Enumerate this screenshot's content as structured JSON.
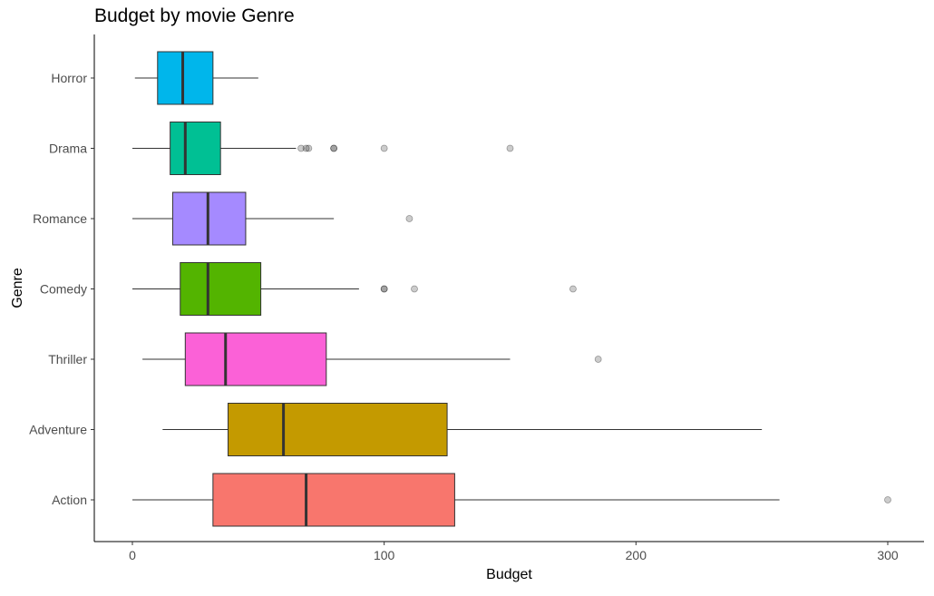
{
  "chart_data": {
    "type": "boxplot",
    "orientation": "horizontal",
    "title": "Budget by movie Genre",
    "xlabel": "Budget",
    "ylabel": "Genre",
    "xlim": [
      -15,
      315
    ],
    "x_ticks": [
      0,
      100,
      200,
      300
    ],
    "grid": false,
    "legend": "none",
    "categories": [
      "Horror",
      "Drama",
      "Romance",
      "Comedy",
      "Thriller",
      "Adventure",
      "Action"
    ],
    "series": [
      {
        "category": "Horror",
        "color": "#00B6EB",
        "whisker_low": 1,
        "q1": 10,
        "median": 20,
        "q3": 32,
        "whisker_high": 50,
        "outliers": []
      },
      {
        "category": "Drama",
        "color": "#00C094",
        "whisker_low": 0,
        "q1": 15,
        "median": 21,
        "q3": 35,
        "whisker_high": 65,
        "outliers": [
          67,
          69,
          70,
          80,
          80,
          100,
          150
        ]
      },
      {
        "category": "Romance",
        "color": "#A58AFF",
        "whisker_low": 0,
        "q1": 16,
        "median": 30,
        "q3": 45,
        "whisker_high": 80,
        "outliers": [
          110
        ]
      },
      {
        "category": "Comedy",
        "color": "#53B400",
        "whisker_low": 0,
        "q1": 19,
        "median": 30,
        "q3": 51,
        "whisker_high": 90,
        "outliers": [
          100,
          100,
          112,
          175
        ]
      },
      {
        "category": "Thriller",
        "color": "#FB61D7",
        "whisker_low": 4,
        "q1": 21,
        "median": 37,
        "q3": 77,
        "whisker_high": 150,
        "outliers": [
          185
        ]
      },
      {
        "category": "Adventure",
        "color": "#C49A00",
        "whisker_low": 12,
        "q1": 38,
        "median": 60,
        "q3": 125,
        "whisker_high": 250,
        "outliers": []
      },
      {
        "category": "Action",
        "color": "#F8766D",
        "whisker_low": 0,
        "q1": 32,
        "median": 69,
        "q3": 128,
        "whisker_high": 257,
        "outliers": [
          300
        ]
      }
    ]
  }
}
